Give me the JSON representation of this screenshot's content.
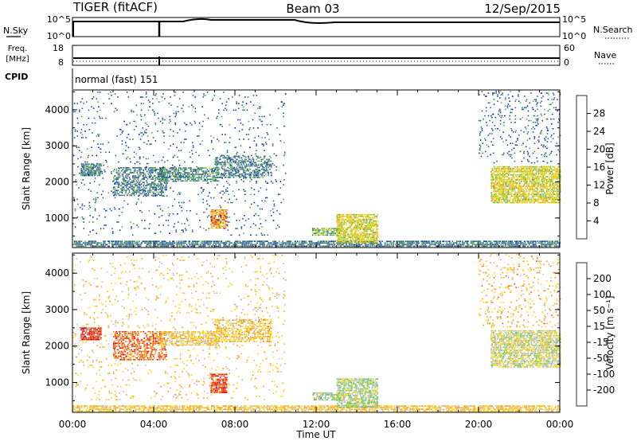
{
  "header": {
    "radar": "TIGER (fitACF)",
    "beam": "Beam 03",
    "date": "12/Sep/2015"
  },
  "status_panels": {
    "nsky_label": "N.Sky",
    "nsky_ticks": [
      "10^5",
      "10^0"
    ],
    "nsearch_label": "N.Search",
    "nsearch_ticks": [
      "10^5",
      "10^0"
    ],
    "freq_label": "Freq.",
    "freq_unit": "[MHz]",
    "freq_ticks": [
      "18",
      "8"
    ],
    "nave_label": "Nave",
    "nave_ticks": [
      "60",
      "0"
    ],
    "cpid_label": "CPID",
    "cpid_text": "normal (fast) 151"
  },
  "chart_data": [
    {
      "type": "heatmap",
      "name": "power",
      "ylabel": "Slant Range [km]",
      "yticks": [
        1000,
        2000,
        3000,
        4000
      ],
      "ylim": [
        180,
        4550
      ],
      "xlim": [
        0,
        24
      ],
      "colorbar_label": "Power [dB]",
      "colorbar_ticks": [
        "28",
        "24",
        "20",
        "16",
        "12",
        "8",
        "4"
      ],
      "colors": [
        "#0000ff",
        "#1a3fa3",
        "#2d6e6e",
        "#5aa95a",
        "#c8d800",
        "#ffb000",
        "#ff5a00",
        "#e00000"
      ],
      "regions": [
        {
          "t0": 0.0,
          "t1": 24.0,
          "r0": 190,
          "r1": 330,
          "level": 1.8,
          "density": 0.55
        },
        {
          "t0": 0.4,
          "t1": 1.4,
          "r0": 2150,
          "r1": 2500,
          "level": 2.2,
          "density": 0.6
        },
        {
          "t0": 2.0,
          "t1": 4.6,
          "r0": 1600,
          "r1": 2400,
          "level": 2.0,
          "density": 0.35
        },
        {
          "t0": 4.2,
          "t1": 7.2,
          "r0": 2000,
          "r1": 2400,
          "level": 2.4,
          "density": 0.45
        },
        {
          "t0": 6.8,
          "t1": 7.6,
          "r0": 700,
          "r1": 1200,
          "level": 5.5,
          "density": 0.6
        },
        {
          "t0": 7.0,
          "t1": 9.8,
          "r0": 2100,
          "r1": 2700,
          "level": 2.0,
          "density": 0.35
        },
        {
          "t0": 11.8,
          "t1": 13.2,
          "r0": 500,
          "r1": 700,
          "level": 3.0,
          "density": 0.5
        },
        {
          "t0": 13.0,
          "t1": 15.0,
          "r0": 300,
          "r1": 1100,
          "level": 4.2,
          "density": 0.55
        },
        {
          "t0": 20.6,
          "t1": 24.0,
          "r0": 1400,
          "r1": 2400,
          "level": 4.2,
          "density": 0.55
        },
        {
          "t0": 20.0,
          "t1": 24.0,
          "r0": 2500,
          "r1": 4500,
          "level": 1.6,
          "density": 0.06
        },
        {
          "t0": 0.0,
          "t1": 10.5,
          "r0": 500,
          "r1": 4500,
          "level": 1.6,
          "density": 0.03
        }
      ]
    },
    {
      "type": "heatmap",
      "name": "velocity",
      "ylabel": "Slant Range [km]",
      "yticks": [
        1000,
        2000,
        3000,
        4000
      ],
      "ylim": [
        180,
        4550
      ],
      "xlim": [
        0,
        24
      ],
      "xlabel": "Time UT",
      "xticks": [
        "00:00",
        "04:00",
        "08:00",
        "12:00",
        "16:00",
        "20:00",
        "00:00"
      ],
      "colorbar_label": "Velocity [m s⁻¹]",
      "colorbar_ticks": [
        "200",
        "100",
        "50",
        "15",
        "-15",
        "-50",
        "-100",
        "-200"
      ],
      "colors": [
        "#0000ff",
        "#1a3fa3",
        "#2d6e6e",
        "#5ac85a",
        "#b8b8b8",
        "#ffd200",
        "#ff9a00",
        "#ff4a00",
        "#e00000"
      ],
      "regions": [
        {
          "t0": 0.0,
          "t1": 24.0,
          "r0": 190,
          "r1": 330,
          "level": 5.2,
          "density": 0.5
        },
        {
          "t0": 0.4,
          "t1": 1.4,
          "r0": 2150,
          "r1": 2500,
          "level": 8.0,
          "density": 0.6
        },
        {
          "t0": 2.0,
          "t1": 4.6,
          "r0": 1600,
          "r1": 2400,
          "level": 7.0,
          "density": 0.35
        },
        {
          "t0": 4.2,
          "t1": 7.2,
          "r0": 2000,
          "r1": 2400,
          "level": 5.0,
          "density": 0.45
        },
        {
          "t0": 6.8,
          "t1": 7.6,
          "r0": 700,
          "r1": 1200,
          "level": 7.5,
          "density": 0.6
        },
        {
          "t0": 7.0,
          "t1": 9.8,
          "r0": 2100,
          "r1": 2700,
          "level": 5.5,
          "density": 0.35
        },
        {
          "t0": 11.8,
          "t1": 13.2,
          "r0": 500,
          "r1": 700,
          "level": 3.5,
          "density": 0.5
        },
        {
          "t0": 13.0,
          "t1": 15.0,
          "r0": 300,
          "r1": 1100,
          "level": 3.8,
          "density": 0.55
        },
        {
          "t0": 20.6,
          "t1": 24.0,
          "r0": 1400,
          "r1": 2400,
          "level": 4.2,
          "density": 0.55
        },
        {
          "t0": 20.0,
          "t1": 24.0,
          "r0": 2500,
          "r1": 4500,
          "level": 5.5,
          "density": 0.06
        },
        {
          "t0": 0.0,
          "t1": 10.5,
          "r0": 500,
          "r1": 4500,
          "level": 5.0,
          "density": 0.03
        }
      ]
    }
  ]
}
